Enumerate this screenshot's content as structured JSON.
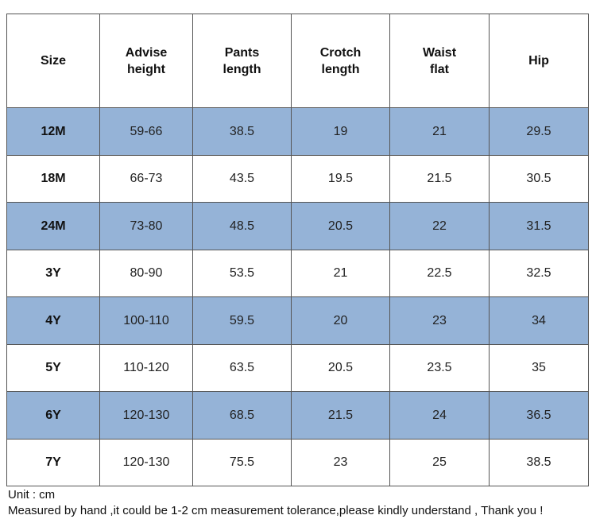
{
  "table": {
    "header": [
      "Size",
      "Advise\nheight",
      "Pants\nlength",
      "Crotch\nlength",
      "Waist\nflat",
      "Hip"
    ],
    "rows": [
      [
        "12M",
        "59-66",
        38.5,
        19,
        21,
        29.5
      ],
      [
        "18M",
        "66-73",
        43.5,
        19.5,
        21.5,
        30.5
      ],
      [
        "24M",
        "73-80",
        48.5,
        20.5,
        22,
        31.5
      ],
      [
        "3Y",
        "80-90",
        53.5,
        21,
        22.5,
        32.5
      ],
      [
        "4Y",
        "100-110",
        59.5,
        20,
        23,
        34
      ],
      [
        "5Y",
        "110-120",
        63.5,
        20.5,
        23.5,
        35
      ],
      [
        "6Y",
        "120-130",
        68.5,
        21.5,
        24,
        36.5
      ],
      [
        "7Y",
        "120-130",
        75.5,
        23,
        25,
        38.5
      ]
    ]
  },
  "notes": [
    "Unit : cm",
    "Measured by hand ,it could be 1-2 cm measurement tolerance,please kindly understand , Thank you !"
  ]
}
